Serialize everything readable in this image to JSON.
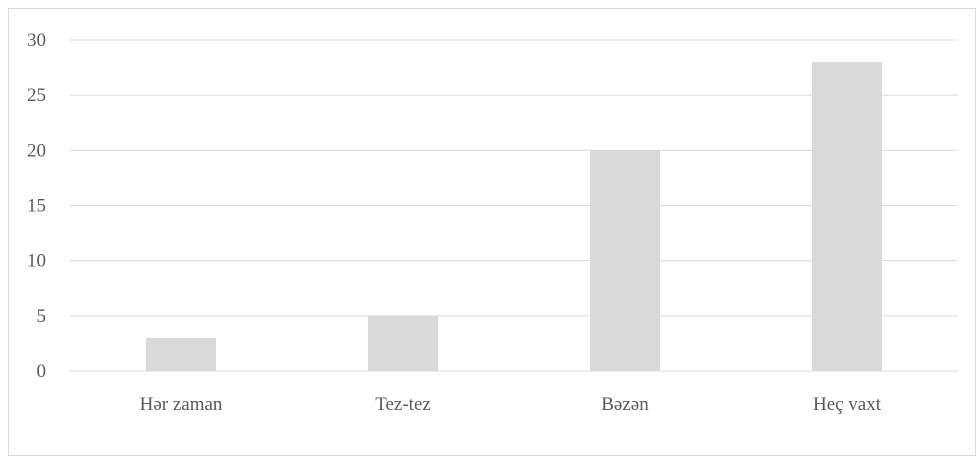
{
  "chart_data": {
    "type": "bar",
    "categories": [
      "Hər zaman",
      "Tez-tez",
      "Bəzən",
      "Heç vaxt"
    ],
    "values": [
      3,
      5,
      20,
      28
    ],
    "title": "",
    "xlabel": "",
    "ylabel": "",
    "ylim": [
      0,
      30
    ],
    "yticks": [
      "0",
      "5",
      "10",
      "15",
      "20",
      "25",
      "30"
    ],
    "grid": true,
    "legend": "none",
    "bar_color": "#d9d9d9",
    "grid_color": "#d9d9d9"
  }
}
